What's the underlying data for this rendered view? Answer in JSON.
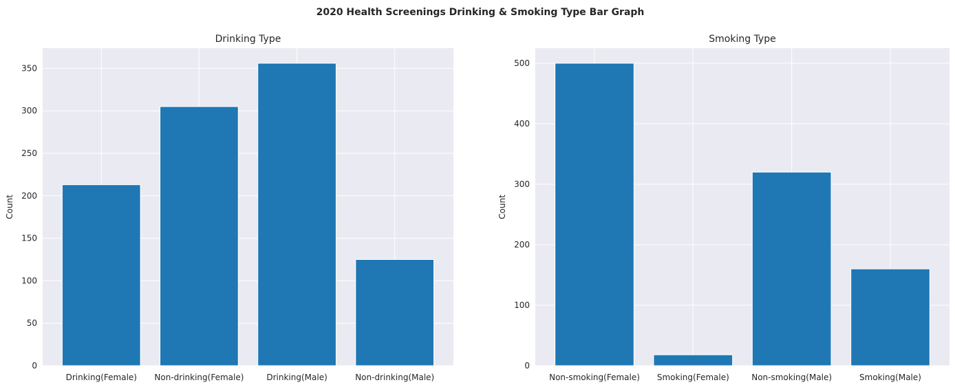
{
  "figure": {
    "suptitle": "2020 Health Screenings Drinking & Smoking Type Bar Graph",
    "bar_color": "#1f77b4",
    "background": "#eaeaf2"
  },
  "chart_data": [
    {
      "type": "bar",
      "title": "Drinking Type",
      "xlabel": "",
      "ylabel": "Count",
      "categories": [
        "Drinking(Female)",
        "Non-drinking(Female)",
        "Drinking(Male)",
        "Non-drinking(Male)"
      ],
      "values": [
        213,
        305,
        356,
        125
      ],
      "ylim": [
        0,
        373.8
      ],
      "yticks": [
        0,
        50,
        100,
        150,
        200,
        250,
        300,
        350
      ],
      "grid": true
    },
    {
      "type": "bar",
      "title": "Smoking Type",
      "xlabel": "",
      "ylabel": "Count",
      "categories": [
        "Non-smoking(Female)",
        "Smoking(Female)",
        "Non-smoking(Male)",
        "Smoking(Male)"
      ],
      "values": [
        500,
        18,
        320,
        160
      ],
      "ylim": [
        0,
        525
      ],
      "yticks": [
        0,
        100,
        200,
        300,
        400,
        500
      ],
      "grid": true
    }
  ]
}
